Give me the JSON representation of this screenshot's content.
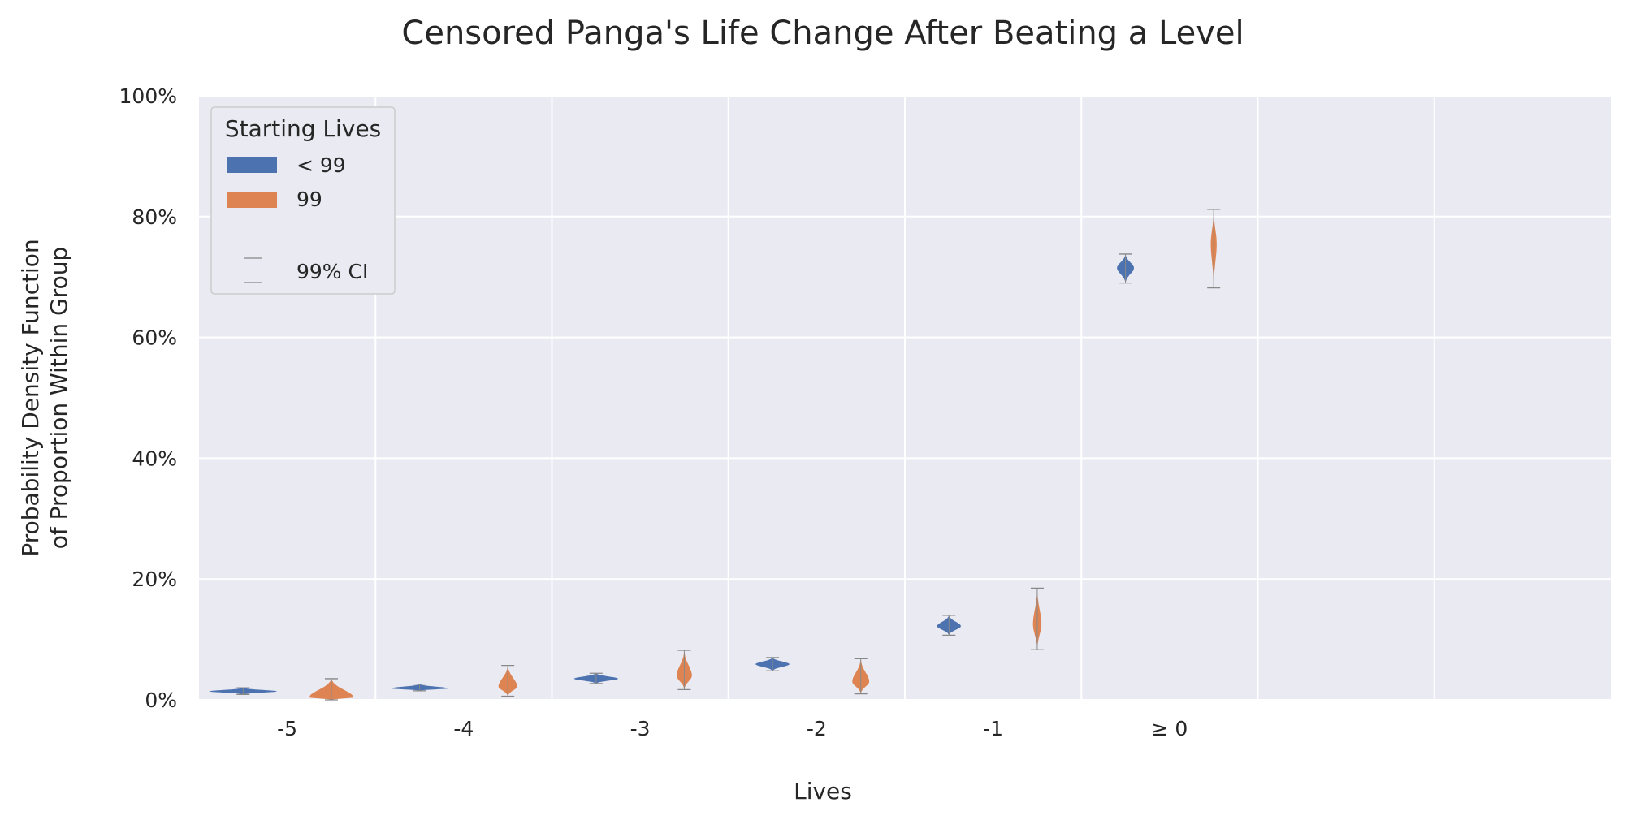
{
  "chart_data": {
    "type": "violin",
    "title": "Censored Panga's Life Change After Beating a Level",
    "xlabel": "Lives",
    "ylabel_lines": [
      "Probability Density Function",
      "of Proportion Within Group"
    ],
    "categories": [
      "-5",
      "-4",
      "-3",
      "-2",
      "-1",
      "≥ 0"
    ],
    "category_slots": 8,
    "ylim": [
      0,
      1
    ],
    "yticks": [
      0,
      0.2,
      0.4,
      0.6,
      0.8,
      1.0
    ],
    "ytick_labels": [
      "0%",
      "20%",
      "40%",
      "60%",
      "80%",
      "100%"
    ],
    "grid": true,
    "legend": {
      "title": "Starting Lives",
      "placement": "upper-left",
      "ci_label": "99% CI"
    },
    "series": [
      {
        "name": "< 99",
        "color": "#4c72b0",
        "violins": [
          {
            "center": 0.014,
            "low": 0.009,
            "high": 0.02,
            "halfwidth": 0.4
          },
          {
            "center": 0.019,
            "low": 0.015,
            "high": 0.026,
            "halfwidth": 0.34
          },
          {
            "center": 0.035,
            "low": 0.027,
            "high": 0.044,
            "halfwidth": 0.26
          },
          {
            "center": 0.059,
            "low": 0.048,
            "high": 0.07,
            "halfwidth": 0.2
          },
          {
            "center": 0.122,
            "low": 0.107,
            "high": 0.14,
            "halfwidth": 0.14
          },
          {
            "center": 0.715,
            "low": 0.69,
            "high": 0.738,
            "halfwidth": 0.1
          }
        ]
      },
      {
        "name": "99",
        "color": "#dd8452",
        "violins": [
          {
            "center": 0.004,
            "low": 0.0,
            "high": 0.035,
            "halfwidth": 0.26
          },
          {
            "center": 0.022,
            "low": 0.006,
            "high": 0.057,
            "halfwidth": 0.11
          },
          {
            "center": 0.04,
            "low": 0.017,
            "high": 0.082,
            "halfwidth": 0.09
          },
          {
            "center": 0.03,
            "low": 0.01,
            "high": 0.068,
            "halfwidth": 0.1
          },
          {
            "center": 0.125,
            "low": 0.083,
            "high": 0.185,
            "halfwidth": 0.05
          },
          {
            "center": 0.755,
            "low": 0.682,
            "high": 0.812,
            "halfwidth": 0.035
          }
        ]
      }
    ]
  }
}
